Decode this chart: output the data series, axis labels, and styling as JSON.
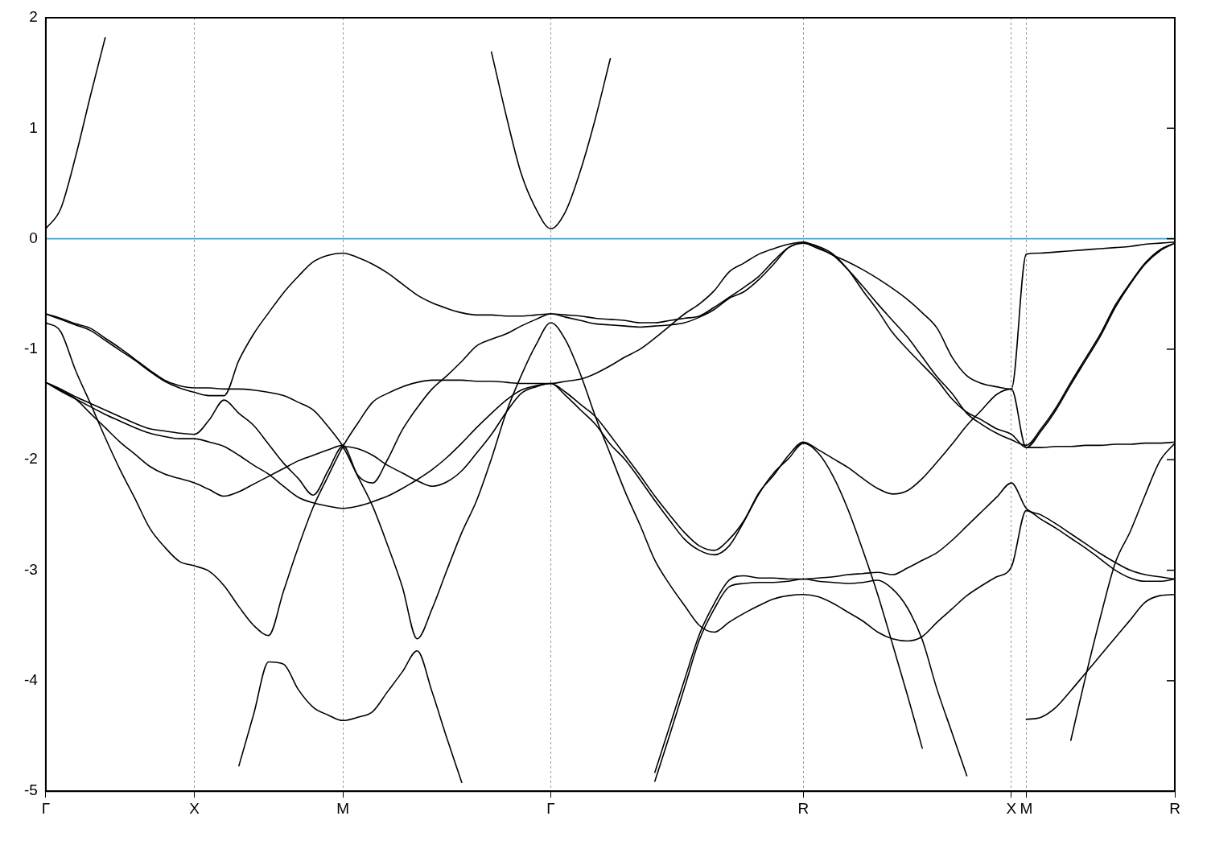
{
  "chart_data": {
    "type": "line",
    "ylim": [
      -5,
      2
    ],
    "categories": [
      "Γ",
      null,
      null,
      null,
      null,
      null,
      null,
      null,
      null,
      null,
      "X",
      null,
      null,
      null,
      null,
      null,
      null,
      null,
      null,
      null,
      "M",
      null,
      null,
      null,
      null,
      null,
      null,
      null,
      null,
      null,
      null,
      null,
      null,
      null,
      "Γ",
      null,
      null,
      null,
      null,
      null,
      null,
      null,
      null,
      null,
      null,
      null,
      null,
      null,
      null,
      null,
      null,
      "R",
      null,
      null,
      null,
      null,
      null,
      null,
      null,
      null,
      null,
      null,
      null,
      null,
      null,
      "X",
      "M",
      null,
      null,
      null,
      null,
      null,
      null,
      null,
      null,
      null,
      "R"
    ],
    "yticks": [
      -5,
      -4,
      -3,
      -2,
      -1,
      0,
      1,
      2
    ],
    "grid": "x",
    "legend": false,
    "ref_lines": [
      {
        "axis": "y",
        "value": 0,
        "color": "#3aa6dd"
      }
    ],
    "series": [
      {
        "color": "#000000",
        "values": [
          0.09,
          0.27,
          0.74,
          1.29,
          1.82,
          null,
          null,
          null,
          null,
          null,
          null,
          null,
          null,
          null,
          null,
          null,
          null,
          null,
          null,
          null,
          null,
          null,
          null,
          null,
          null,
          null,
          null,
          null,
          null,
          null,
          null,
          null,
          null,
          null,
          null,
          null,
          null,
          null,
          null,
          null,
          null,
          null,
          null,
          null,
          null,
          null,
          null,
          null,
          null,
          null,
          null,
          null,
          null,
          null,
          null,
          null,
          null,
          null,
          null,
          null,
          null,
          null,
          null,
          null,
          null,
          null,
          null,
          null,
          null,
          null,
          null,
          null,
          null,
          null,
          null,
          null,
          null
        ]
      },
      {
        "color": "#000000",
        "values": [
          null,
          null,
          null,
          null,
          null,
          null,
          null,
          null,
          null,
          null,
          null,
          null,
          null,
          null,
          null,
          null,
          null,
          null,
          null,
          null,
          null,
          null,
          null,
          null,
          null,
          null,
          null,
          null,
          null,
          null,
          1.69,
          1.11,
          0.59,
          0.27,
          0.09,
          0.25,
          0.62,
          1.09,
          1.63,
          null,
          null,
          null,
          null,
          null,
          null,
          null,
          null,
          null,
          null,
          null,
          null,
          null,
          null,
          null,
          null,
          null,
          null,
          null,
          null,
          null,
          null,
          null,
          null,
          null,
          null,
          null,
          null,
          null,
          null,
          null,
          null,
          null,
          null,
          null,
          null,
          null,
          null
        ]
      },
      {
        "color": "#000000",
        "values": [
          -0.68,
          -0.72,
          -0.77,
          -0.81,
          -0.9,
          -0.99,
          -1.09,
          -1.19,
          -1.28,
          -1.33,
          -1.35,
          -1.35,
          -1.36,
          -1.36,
          -1.37,
          -1.39,
          -1.42,
          -1.48,
          -1.55,
          -1.7,
          -1.88,
          -2.15,
          -2.42,
          -2.77,
          -3.15,
          -3.62,
          -3.35,
          -3,
          -2.66,
          -2.37,
          -1.99,
          -1.57,
          -1.24,
          -0.96,
          -0.76,
          -0.92,
          -1.23,
          -1.61,
          -1.95,
          -2.29,
          -2.59,
          -2.91,
          -3.13,
          -3.32,
          -3.5,
          -3.56,
          -3.47,
          -3.39,
          -3.32,
          -3.26,
          -3.23,
          -3.22,
          -3.24,
          -3.3,
          -3.38,
          -3.46,
          -3.56,
          -3.62,
          -3.64,
          -3.6,
          -3.47,
          -3.35,
          -3.23,
          -3.14,
          -3.06,
          -2.97,
          -2.46,
          -2.54,
          -2.62,
          -2.71,
          -2.8,
          -2.9,
          -3,
          -3.07,
          -3.1,
          -3.1,
          -3.08
        ]
      },
      {
        "color": "#000000",
        "values": [
          -0.68,
          -0.73,
          -0.78,
          -0.83,
          -0.92,
          -1.01,
          -1.1,
          -1.2,
          -1.29,
          -1.35,
          -1.39,
          -1.42,
          -1.42,
          -1.1,
          -0.86,
          -0.67,
          -0.49,
          -0.34,
          -0.21,
          -0.15,
          -0.13,
          -0.17,
          -0.23,
          -0.31,
          -0.41,
          -0.51,
          -0.58,
          -0.63,
          -0.67,
          -0.69,
          -0.69,
          -0.7,
          -0.7,
          -0.69,
          -0.68,
          -0.69,
          -0.7,
          -0.72,
          -0.73,
          -0.74,
          -0.76,
          -0.76,
          -0.74,
          -0.72,
          -0.7,
          -0.62,
          -0.53,
          -0.44,
          -0.34,
          -0.2,
          -0.08,
          -0.04,
          -0.09,
          -0.15,
          -0.28,
          -0.43,
          -0.59,
          -0.74,
          -0.89,
          -1.07,
          -1.25,
          -1.4,
          -1.58,
          -1.68,
          -1.76,
          -1.82,
          -1.87,
          -1.72,
          -1.53,
          -1.3,
          -1.08,
          -0.86,
          -0.6,
          -0.4,
          -0.22,
          -0.1,
          -0.04
        ]
      },
      {
        "color": "#000000",
        "values": [
          -0.76,
          -0.84,
          -1.19,
          -1.49,
          -1.8,
          -2.09,
          -2.35,
          -2.62,
          -2.79,
          -2.92,
          -2.96,
          -3.01,
          -3.14,
          -3.33,
          -3.5,
          -3.59,
          -3.19,
          -2.79,
          -2.43,
          -2.15,
          -1.88,
          -1.67,
          -1.48,
          -1.4,
          -1.34,
          -1.3,
          -1.28,
          -1.28,
          -1.28,
          -1.29,
          -1.29,
          -1.3,
          -1.31,
          -1.31,
          -1.31,
          -1.29,
          -1.27,
          -1.22,
          -1.15,
          -1.07,
          -1,
          -0.9,
          -0.79,
          -0.68,
          -0.59,
          -0.47,
          -0.3,
          -0.22,
          -0.14,
          -0.09,
          -0.05,
          -0.03,
          -0.08,
          -0.15,
          -0.21,
          -0.28,
          -0.36,
          -0.45,
          -0.55,
          -0.67,
          -0.81,
          -1.07,
          -1.24,
          -1.31,
          -1.34,
          -1.36,
          -0.14,
          -0.13,
          -0.12,
          -0.11,
          -0.1,
          -0.09,
          -0.08,
          -0.07,
          -0.05,
          -0.04,
          -0.03
        ]
      },
      {
        "color": "#000000",
        "values": [
          null,
          null,
          null,
          null,
          null,
          null,
          null,
          null,
          null,
          null,
          null,
          null,
          null,
          -4.77,
          -4.3,
          -3.83,
          -3.85,
          -4.08,
          -4.24,
          -4.31,
          -4.36,
          -4.33,
          -4.28,
          -4.1,
          -3.92,
          -3.73,
          -4.1,
          -4.52,
          -4.92,
          null,
          null,
          null,
          null,
          null,
          null,
          null,
          null,
          null,
          null,
          null,
          null,
          null,
          null,
          null,
          null,
          null,
          null,
          null,
          null,
          null,
          null,
          null,
          null,
          null,
          null,
          null,
          null,
          null,
          null,
          null,
          null,
          null,
          null,
          null,
          null,
          null,
          null,
          null,
          null,
          null,
          null,
          null,
          null,
          null,
          null,
          null,
          null
        ]
      },
      {
        "color": "#000000",
        "values": [
          -1.3,
          -1.36,
          -1.43,
          -1.49,
          -1.55,
          -1.61,
          -1.67,
          -1.72,
          -1.74,
          -1.76,
          -1.77,
          -1.64,
          -1.46,
          -1.58,
          -1.69,
          -1.86,
          -2.03,
          -2.17,
          -2.32,
          -2.1,
          -1.88,
          -1.9,
          -1.96,
          -2.05,
          -2.12,
          -2.19,
          -2.24,
          -2.2,
          -2.1,
          -1.94,
          -1.77,
          -1.57,
          -1.4,
          -1.34,
          -1.31,
          -1.39,
          -1.5,
          -1.61,
          -1.78,
          -1.96,
          -2.14,
          -2.33,
          -2.5,
          -2.66,
          -2.78,
          -2.82,
          -2.72,
          -2.55,
          -2.3,
          -2.14,
          -1.96,
          -1.84,
          -1.91,
          -1.99,
          -2.07,
          -2.17,
          -2.26,
          -2.31,
          -2.28,
          -2.17,
          -2.02,
          -1.86,
          -1.69,
          -1.55,
          -1.41,
          -1.36,
          -1.89,
          -1.89,
          -1.88,
          -1.88,
          -1.87,
          -1.87,
          -1.86,
          -1.86,
          -1.85,
          -1.85,
          -1.84
        ]
      },
      {
        "color": "#000000",
        "values": [
          -1.3,
          -1.37,
          -1.45,
          -1.58,
          -1.71,
          -1.84,
          -1.95,
          -2.06,
          -2.13,
          -2.17,
          -2.21,
          -2.27,
          -2.33,
          -2.29,
          -2.22,
          -2.15,
          -2.08,
          -2.01,
          -1.96,
          -1.91,
          -1.87,
          -2.14,
          -2.21,
          -2,
          -1.73,
          -1.53,
          -1.36,
          -1.24,
          -1.11,
          -0.97,
          -0.91,
          -0.86,
          -0.79,
          -0.73,
          -0.68,
          -0.71,
          -0.74,
          -0.77,
          -0.78,
          -0.79,
          -0.8,
          -0.79,
          -0.78,
          -0.76,
          -0.71,
          -0.64,
          -0.54,
          -0.48,
          -0.37,
          -0.23,
          -0.08,
          -0.04,
          -0.07,
          -0.14,
          -0.28,
          -0.47,
          -0.65,
          -0.85,
          -1,
          -1.14,
          -1.28,
          -1.45,
          -1.57,
          -1.64,
          -1.72,
          -1.77,
          -1.89,
          -1.74,
          -1.55,
          -1.32,
          -1.1,
          -0.88,
          -0.62,
          -0.41,
          -0.23,
          -0.11,
          -0.04
        ]
      },
      {
        "color": "#000000",
        "values": [
          -1.3,
          -1.38,
          -1.45,
          -1.52,
          -1.59,
          -1.65,
          -1.71,
          -1.76,
          -1.79,
          -1.81,
          -1.81,
          -1.84,
          -1.88,
          -1.96,
          -2.05,
          -2.13,
          -2.24,
          -2.34,
          -2.39,
          -2.42,
          -2.44,
          -2.42,
          -2.38,
          -2.33,
          -2.26,
          -2.18,
          -2.09,
          -1.98,
          -1.85,
          -1.71,
          -1.58,
          -1.46,
          -1.37,
          -1.33,
          -1.31,
          -1.42,
          -1.55,
          -1.68,
          -1.86,
          -2,
          -2.18,
          -2.37,
          -2.55,
          -2.72,
          -2.82,
          -2.86,
          -2.78,
          -2.56,
          -2.31,
          -2.12,
          -1.99,
          -1.85,
          -1.94,
          -2.15,
          -2.45,
          -2.82,
          -3.22,
          -3.67,
          -4.13,
          -4.61,
          null,
          null,
          null,
          null,
          null,
          null,
          null,
          null,
          null,
          null,
          null,
          null,
          null,
          null,
          null,
          null,
          null
        ]
      },
      {
        "color": "#000000",
        "values": [
          null,
          null,
          null,
          null,
          null,
          null,
          null,
          null,
          null,
          null,
          null,
          null,
          null,
          null,
          null,
          null,
          null,
          null,
          null,
          null,
          null,
          null,
          null,
          null,
          null,
          null,
          null,
          null,
          null,
          null,
          null,
          null,
          null,
          null,
          null,
          null,
          null,
          null,
          null,
          null,
          null,
          -4.83,
          -4.41,
          -3.99,
          -3.58,
          -3.3,
          -3.09,
          -3.05,
          -3.07,
          -3.07,
          -3.08,
          -3.08,
          -3.07,
          -3.06,
          -3.04,
          -3.03,
          -3.02,
          -3.04,
          -2.98,
          -2.91,
          -2.84,
          -2.73,
          -2.6,
          -2.47,
          -2.34,
          -2.21,
          -2.44,
          -2.5,
          -2.58,
          -2.67,
          -2.76,
          -2.85,
          -2.93,
          -3,
          -3.04,
          -3.06,
          -3.08
        ]
      },
      {
        "color": "#000000",
        "values": [
          null,
          null,
          null,
          null,
          null,
          null,
          null,
          null,
          null,
          null,
          null,
          null,
          null,
          null,
          null,
          null,
          null,
          null,
          null,
          null,
          null,
          null,
          null,
          null,
          null,
          null,
          null,
          null,
          null,
          null,
          null,
          null,
          null,
          null,
          null,
          null,
          null,
          null,
          null,
          null,
          null,
          -4.91,
          -4.49,
          -4.06,
          -3.63,
          -3.35,
          -3.15,
          -3.12,
          -3.11,
          -3.11,
          -3.1,
          -3.08,
          -3.1,
          -3.11,
          -3.12,
          -3.11,
          -3.09,
          -3.17,
          -3.34,
          -3.63,
          -4.08,
          -4.47,
          -4.86,
          null,
          null,
          null,
          null,
          null,
          null,
          null,
          null,
          null,
          null,
          null,
          null,
          null,
          null
        ]
      },
      {
        "color": "#000000",
        "values": [
          null,
          null,
          null,
          null,
          null,
          null,
          null,
          null,
          null,
          null,
          null,
          null,
          null,
          null,
          null,
          null,
          null,
          null,
          null,
          null,
          null,
          null,
          null,
          null,
          null,
          null,
          null,
          null,
          null,
          null,
          null,
          null,
          null,
          null,
          null,
          null,
          null,
          null,
          null,
          null,
          null,
          null,
          null,
          null,
          null,
          null,
          null,
          null,
          null,
          null,
          null,
          null,
          null,
          null,
          null,
          null,
          null,
          null,
          null,
          null,
          null,
          null,
          null,
          null,
          null,
          null,
          null,
          null,
          null,
          -4.54,
          -3.96,
          -3.42,
          -2.93,
          -2.65,
          -2.32,
          -2.01,
          -1.85
        ]
      },
      {
        "color": "#000000",
        "values": [
          null,
          null,
          null,
          null,
          null,
          null,
          null,
          null,
          null,
          null,
          null,
          null,
          null,
          null,
          null,
          null,
          null,
          null,
          null,
          null,
          null,
          null,
          null,
          null,
          null,
          null,
          null,
          null,
          null,
          null,
          null,
          null,
          null,
          null,
          null,
          null,
          null,
          null,
          null,
          null,
          null,
          null,
          null,
          null,
          null,
          null,
          null,
          null,
          null,
          null,
          null,
          null,
          null,
          null,
          null,
          null,
          null,
          null,
          null,
          null,
          null,
          null,
          null,
          null,
          null,
          null,
          -4.35,
          -4.33,
          -4.24,
          -4.09,
          -3.93,
          -3.77,
          -3.61,
          -3.45,
          -3.29,
          -3.23,
          -3.22
        ]
      }
    ]
  }
}
